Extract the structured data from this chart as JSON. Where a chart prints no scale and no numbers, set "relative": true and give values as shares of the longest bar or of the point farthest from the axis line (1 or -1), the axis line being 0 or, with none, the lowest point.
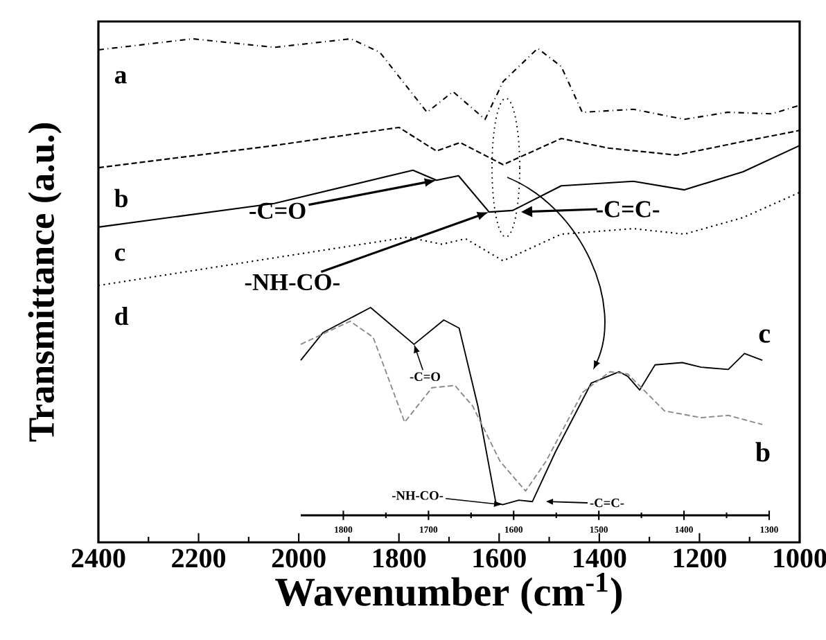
{
  "chart_data": [
    {
      "type": "line",
      "xlabel": "Wavenumber (cm$^{-1}$)",
      "ylabel": "Transmittance (a.u.)",
      "xlim": [
        2400,
        1000
      ],
      "xticks": [
        2400,
        2200,
        2000,
        1800,
        1600,
        1400,
        1200,
        1000
      ],
      "relative": true,
      "tick_labels": "x",
      "marker": "none",
      "series": [
        {
          "name": "a",
          "color": "#000000",
          "line_style": "dashdot",
          "x": [
            2400,
            2212,
            2049,
            1896,
            1838,
            1744,
            1692,
            1628,
            1592,
            1523,
            1476,
            1434,
            1332,
            1230,
            1144,
            1055,
            1000
          ],
          "values": [
            0.978,
            1.0,
            0.983,
            1.0,
            0.973,
            0.854,
            0.895,
            0.84,
            0.915,
            0.981,
            0.945,
            0.854,
            0.86,
            0.84,
            0.854,
            0.851,
            0.868
          ]
        },
        {
          "name": "b",
          "color": "#000000",
          "line_style": "dashed",
          "x": [
            2400,
            2049,
            1800,
            1725,
            1678,
            1592,
            1476,
            1382,
            1246,
            1113,
            1000
          ],
          "values": [
            0.744,
            0.788,
            0.824,
            0.777,
            0.794,
            0.75,
            0.802,
            0.783,
            0.769,
            0.796,
            0.818
          ]
        },
        {
          "name": "c",
          "color": "#000000",
          "line_style": "solid",
          "x": [
            2400,
            2049,
            1772,
            1725,
            1681,
            1620,
            1573,
            1476,
            1332,
            1230,
            1113,
            1000
          ],
          "values": [
            0.626,
            0.673,
            0.739,
            0.719,
            0.728,
            0.656,
            0.659,
            0.708,
            0.717,
            0.7,
            0.736,
            0.788
          ]
        },
        {
          "name": "d",
          "color": "#000000",
          "line_style": "dotted",
          "x": [
            2400,
            2049,
            1783,
            1714,
            1667,
            1592,
            1476,
            1332,
            1230,
            1113,
            1000
          ],
          "values": [
            0.51,
            0.565,
            0.606,
            0.592,
            0.603,
            0.559,
            0.612,
            0.623,
            0.612,
            0.645,
            0.695
          ]
        }
      ],
      "annotations": [
        {
          "text": "-C=O",
          "x": 1725,
          "y": 0.719
        },
        {
          "text": "-NH-CO-",
          "x": 1620,
          "y": 0.656
        },
        "-C=C-"
      ]
    },
    {
      "type": "line",
      "xlim": [
        1850,
        1300
      ],
      "xticks": [
        1800,
        1700,
        1600,
        1500,
        1400,
        1300
      ],
      "relative": true,
      "tick_labels": "x",
      "marker": "none",
      "series": [
        {
          "name": "c",
          "color": "#000000",
          "line_style": "solid",
          "x": [
            1850,
            1824,
            1768,
            1717,
            1682,
            1664,
            1642,
            1621,
            1613,
            1594,
            1578,
            1551,
            1509,
            1476,
            1466,
            1452,
            1434,
            1402,
            1380,
            1348,
            1329,
            1308
          ],
          "values": [
            0.746,
            0.879,
            1.0,
            0.823,
            0.94,
            0.901,
            0.525,
            0.062,
            0.051,
            0.073,
            0.066,
            0.305,
            0.636,
            0.691,
            0.669,
            0.603,
            0.724,
            0.735,
            0.713,
            0.702,
            0.779,
            0.746
          ]
        },
        {
          "name": "b",
          "color": "#888888",
          "line_style": "dashed",
          "x": [
            1850,
            1792,
            1765,
            1728,
            1696,
            1669,
            1648,
            1616,
            1586,
            1562,
            1519,
            1487,
            1466,
            1423,
            1380,
            1348,
            1308
          ],
          "values": [
            0.823,
            0.934,
            0.857,
            0.448,
            0.614,
            0.625,
            0.525,
            0.26,
            0.117,
            0.26,
            0.592,
            0.691,
            0.68,
            0.503,
            0.47,
            0.481,
            0.437
          ]
        }
      ],
      "annotations": [
        {
          "text": "-C=O",
          "x": 1717,
          "y": 0.823
        },
        {
          "text": "-NH-CO-",
          "x": 1613,
          "y": 0.051
        },
        "-C=C-"
      ]
    }
  ]
}
